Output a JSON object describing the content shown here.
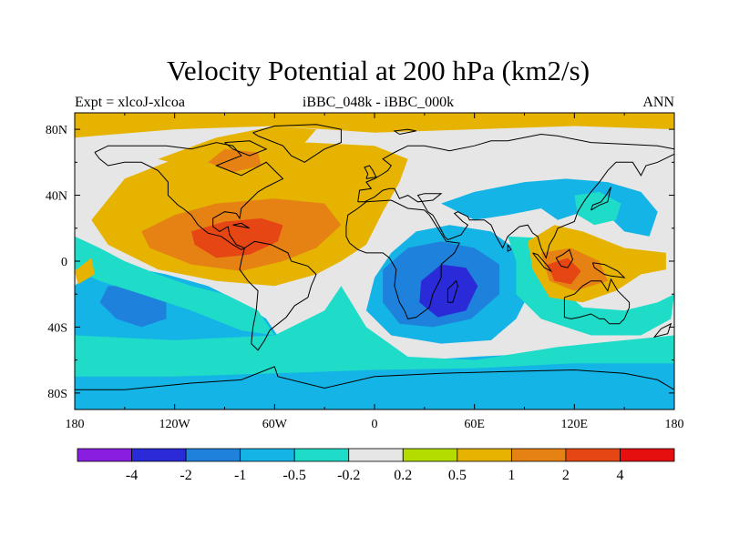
{
  "chart_data": {
    "type": "heatmap",
    "title": "Velocity Potential at 200 hPa (km2/s)",
    "left_label": "Expt = xlcoJ-xlcoa",
    "center_label": "iBBC_048k - iBBC_000k",
    "right_label": "ANN",
    "x_ticks": [
      "180",
      "120W",
      "60W",
      "0",
      "60E",
      "120E",
      "180"
    ],
    "y_ticks": [
      "80N",
      "40N",
      "0",
      "40S",
      "80S"
    ],
    "xlim": [
      -180,
      180
    ],
    "ylim": [
      -90,
      90
    ],
    "colorbar": {
      "levels": [
        "-4",
        "-2",
        "-1",
        "-0.5",
        "-0.2",
        "0.2",
        "0.5",
        "1",
        "2",
        "4"
      ],
      "colors": [
        "#8a1ee0",
        "#2a2ad8",
        "#1e82dc",
        "#14b4e6",
        "#1edcc8",
        "#e6e6e6",
        "#b4dc00",
        "#e6b400",
        "#e68214",
        "#e64614",
        "#e60f0f"
      ]
    },
    "palette": {
      "vp_m4": "#8a1ee0",
      "vp_m2": "#2a2ad8",
      "vp_m1": "#1e82dc",
      "vp_m05": "#14b4e6",
      "vp_m02": "#1edcc8",
      "vp_0": "#e6e6e6",
      "vp_p02": "#b4dc00",
      "vp_p05": "#e6b400",
      "vp_p1": "#e68214",
      "vp_p2": "#e64614",
      "vp_p4": "#e60f0f"
    },
    "regions": [
      {
        "name": "atlantic-positive",
        "level": "vp_p05",
        "points": [
          [
            -160,
            10
          ],
          [
            -170,
            25
          ],
          [
            -150,
            50
          ],
          [
            -120,
            62
          ],
          [
            -80,
            68
          ],
          [
            -40,
            72
          ],
          [
            0,
            70
          ],
          [
            20,
            62
          ],
          [
            15,
            48
          ],
          [
            5,
            30
          ],
          [
            -5,
            10
          ],
          [
            -20,
            0
          ],
          [
            -35,
            -8
          ],
          [
            -60,
            -15
          ],
          [
            -95,
            -12
          ],
          [
            -130,
            -5
          ]
        ]
      },
      {
        "name": "atlantic-positive-north",
        "level": "vp_p05",
        "points": [
          [
            -130,
            62
          ],
          [
            -95,
            75
          ],
          [
            -60,
            82
          ],
          [
            -35,
            80
          ],
          [
            -45,
            68
          ],
          [
            -80,
            64
          ],
          [
            -115,
            58
          ]
        ]
      },
      {
        "name": "central-america-positive",
        "level": "vp_p1",
        "points": [
          [
            -135,
            8
          ],
          [
            -140,
            18
          ],
          [
            -120,
            28
          ],
          [
            -95,
            35
          ],
          [
            -60,
            38
          ],
          [
            -30,
            35
          ],
          [
            -20,
            22
          ],
          [
            -35,
            8
          ],
          [
            -55,
            0
          ],
          [
            -80,
            -6
          ],
          [
            -110,
            -2
          ]
        ]
      },
      {
        "name": "caribbean-positive",
        "level": "vp_p2",
        "points": [
          [
            -108,
            10
          ],
          [
            -110,
            18
          ],
          [
            -90,
            24
          ],
          [
            -68,
            26
          ],
          [
            -55,
            22
          ],
          [
            -58,
            12
          ],
          [
            -75,
            4
          ],
          [
            -95,
            2
          ]
        ]
      },
      {
        "name": "north-america-positive",
        "level": "vp_p1",
        "points": [
          [
            -100,
            60
          ],
          [
            -90,
            68
          ],
          [
            -70,
            66
          ],
          [
            -68,
            58
          ],
          [
            -85,
            54
          ]
        ]
      },
      {
        "name": "indian-ocean-negative",
        "level": "vp_m05",
        "points": [
          [
            10,
            5
          ],
          [
            0,
            -10
          ],
          [
            -5,
            -30
          ],
          [
            10,
            -45
          ],
          [
            40,
            -50
          ],
          [
            70,
            -48
          ],
          [
            85,
            -35
          ],
          [
            95,
            -15
          ],
          [
            88,
            5
          ],
          [
            70,
            18
          ],
          [
            45,
            22
          ],
          [
            25,
            18
          ]
        ]
      },
      {
        "name": "south-africa-negative",
        "level": "vp_m1",
        "points": [
          [
            5,
            -5
          ],
          [
            5,
            -25
          ],
          [
            15,
            -38
          ],
          [
            35,
            -40
          ],
          [
            58,
            -35
          ],
          [
            75,
            -20
          ],
          [
            75,
            -2
          ],
          [
            60,
            8
          ],
          [
            40,
            12
          ],
          [
            20,
            8
          ]
        ]
      },
      {
        "name": "madagascar-negative",
        "level": "vp_m2",
        "points": [
          [
            28,
            -12
          ],
          [
            27,
            -25
          ],
          [
            38,
            -34
          ],
          [
            55,
            -30
          ],
          [
            62,
            -15
          ],
          [
            55,
            -4
          ],
          [
            40,
            -2
          ]
        ]
      },
      {
        "name": "asia-negative-arc",
        "level": "vp_m05",
        "points": [
          [
            40,
            35
          ],
          [
            60,
            42
          ],
          [
            90,
            48
          ],
          [
            115,
            50
          ],
          [
            140,
            48
          ],
          [
            160,
            42
          ],
          [
            170,
            30
          ],
          [
            165,
            15
          ],
          [
            150,
            18
          ],
          [
            140,
            28
          ],
          [
            125,
            30
          ],
          [
            110,
            25
          ],
          [
            100,
            32
          ],
          [
            80,
            28
          ],
          [
            60,
            25
          ]
        ]
      },
      {
        "name": "asia-negative-core",
        "level": "vp_m02",
        "points": [
          [
            120,
            40
          ],
          [
            135,
            42
          ],
          [
            148,
            35
          ],
          [
            145,
            25
          ],
          [
            132,
            22
          ],
          [
            122,
            28
          ]
        ]
      },
      {
        "name": "pacific-negative-hook",
        "level": "vp_m02",
        "points": [
          [
            80,
            15
          ],
          [
            85,
            0
          ],
          [
            85,
            -20
          ],
          [
            100,
            -35
          ],
          [
            130,
            -45
          ],
          [
            160,
            -45
          ],
          [
            178,
            -35
          ],
          [
            180,
            -20
          ],
          [
            170,
            -25
          ],
          [
            150,
            -30
          ],
          [
            125,
            -28
          ],
          [
            110,
            -15
          ],
          [
            105,
            5
          ],
          [
            100,
            14
          ]
        ]
      },
      {
        "name": "maritime-positive",
        "level": "vp_p05",
        "points": [
          [
            92,
            12
          ],
          [
            95,
            -5
          ],
          [
            105,
            -22
          ],
          [
            125,
            -25
          ],
          [
            145,
            -18
          ],
          [
            160,
            -8
          ],
          [
            175,
            -5
          ],
          [
            175,
            5
          ],
          [
            150,
            8
          ],
          [
            125,
            18
          ],
          [
            108,
            22
          ]
        ]
      },
      {
        "name": "maritime-positive-core",
        "level": "vp_p1",
        "points": [
          [
            100,
            5
          ],
          [
            105,
            -12
          ],
          [
            120,
            -18
          ],
          [
            140,
            -12
          ],
          [
            135,
            0
          ],
          [
            118,
            8
          ]
        ]
      },
      {
        "name": "maritime-positive-peak",
        "level": "vp_p2",
        "points": [
          [
            104,
            -2
          ],
          [
            108,
            -12
          ],
          [
            118,
            -14
          ],
          [
            124,
            -6
          ],
          [
            116,
            2
          ]
        ]
      },
      {
        "name": "pacific-south-negative",
        "level": "vp_m05",
        "points": [
          [
            -180,
            -15
          ],
          [
            -170,
            -5
          ],
          [
            -150,
            -3
          ],
          [
            -125,
            -8
          ],
          [
            -100,
            -15
          ],
          [
            -80,
            -25
          ],
          [
            -65,
            -35
          ],
          [
            -55,
            -50
          ],
          [
            -60,
            -65
          ],
          [
            -100,
            -70
          ],
          [
            -180,
            -72
          ]
        ]
      },
      {
        "name": "pacific-south-core",
        "level": "vp_m1",
        "points": [
          [
            -160,
            -15
          ],
          [
            -165,
            -25
          ],
          [
            -155,
            -35
          ],
          [
            -140,
            -40
          ],
          [
            -125,
            -35
          ],
          [
            -125,
            -25
          ],
          [
            -140,
            -15
          ]
        ]
      },
      {
        "name": "antarctic-negative",
        "level": "vp_m05",
        "points": [
          [
            -180,
            -62
          ],
          [
            -120,
            -68
          ],
          [
            -60,
            -65
          ],
          [
            0,
            -62
          ],
          [
            60,
            -58
          ],
          [
            120,
            -55
          ],
          [
            180,
            -55
          ],
          [
            180,
            -90
          ],
          [
            -180,
            -90
          ]
        ]
      },
      {
        "name": "southern-ring-teal",
        "level": "vp_m02",
        "points": [
          [
            -180,
            -45
          ],
          [
            -120,
            -48
          ],
          [
            -60,
            -45
          ],
          [
            -30,
            -30
          ],
          [
            -20,
            -15
          ],
          [
            -5,
            -40
          ],
          [
            20,
            -58
          ],
          [
            60,
            -60
          ],
          [
            110,
            -52
          ],
          [
            150,
            -48
          ],
          [
            180,
            -45
          ],
          [
            180,
            -62
          ],
          [
            120,
            -62
          ],
          [
            60,
            -65
          ],
          [
            0,
            -66
          ],
          [
            -60,
            -68
          ],
          [
            -120,
            -70
          ],
          [
            -180,
            -70
          ]
        ]
      },
      {
        "name": "west-pacific-teal",
        "level": "vp_m02",
        "points": [
          [
            -180,
            15
          ],
          [
            -165,
            8
          ],
          [
            -150,
            0
          ],
          [
            -130,
            -8
          ],
          [
            -110,
            -15
          ],
          [
            -90,
            -20
          ],
          [
            -70,
            -30
          ],
          [
            -60,
            -45
          ],
          [
            -80,
            -42
          ],
          [
            -110,
            -30
          ],
          [
            -140,
            -20
          ],
          [
            -165,
            -12
          ],
          [
            -180,
            -5
          ]
        ]
      },
      {
        "name": "pacific-equator-positive",
        "level": "vp_p05",
        "points": [
          [
            -180,
            -6
          ],
          [
            -170,
            2
          ],
          [
            -168,
            -8
          ],
          [
            -178,
            -14
          ]
        ]
      },
      {
        "name": "arctic-positive",
        "level": "vp_p05",
        "points": [
          [
            -180,
            75
          ],
          [
            -120,
            80
          ],
          [
            -60,
            82
          ],
          [
            0,
            78
          ],
          [
            60,
            80
          ],
          [
            120,
            82
          ],
          [
            180,
            80
          ],
          [
            180,
            90
          ],
          [
            -180,
            90
          ]
        ]
      }
    ]
  }
}
